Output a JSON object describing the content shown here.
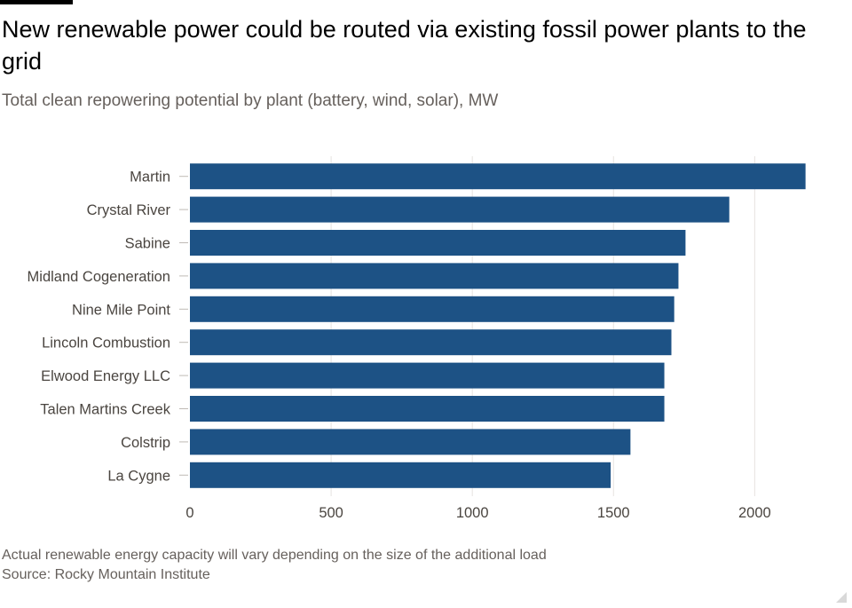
{
  "colors": {
    "bar": "#1d5285",
    "grid": "#e6e3e0",
    "tick": "#bfbab5",
    "label": "#4a4540",
    "subtle": "#66605c"
  },
  "header": {
    "title": "New renewable power could be routed via existing fossil power plants to the grid",
    "subtitle": "Total clean repowering potential by plant (battery, wind, solar), MW"
  },
  "chart_data": {
    "type": "bar",
    "orientation": "horizontal",
    "title": "New renewable power could be routed via existing fossil power plants to the grid",
    "subtitle": "Total clean repowering potential by plant (battery, wind, solar), MW",
    "categories": [
      "Martin",
      "Crystal River",
      "Sabine",
      "Midland Cogeneration",
      "Nine Mile Point",
      "Lincoln Combustion",
      "Elwood Energy LLC",
      "Talen Martins Creek",
      "Colstrip",
      "La Cygne"
    ],
    "values": [
      2180,
      1910,
      1755,
      1730,
      1715,
      1705,
      1680,
      1680,
      1560,
      1490
    ],
    "xlabel": "",
    "ylabel": "",
    "xlim": [
      0,
      2200
    ],
    "xticks": [
      0,
      500,
      1000,
      1500,
      2000
    ],
    "xtick_labels": [
      "0",
      "500",
      "1000",
      "1500",
      "2000"
    ],
    "grid": true,
    "legend": "none"
  },
  "footer": {
    "note": "Actual renewable energy capacity will vary depending on the size of the additional load",
    "source": "Source: Rocky Mountain Institute"
  }
}
